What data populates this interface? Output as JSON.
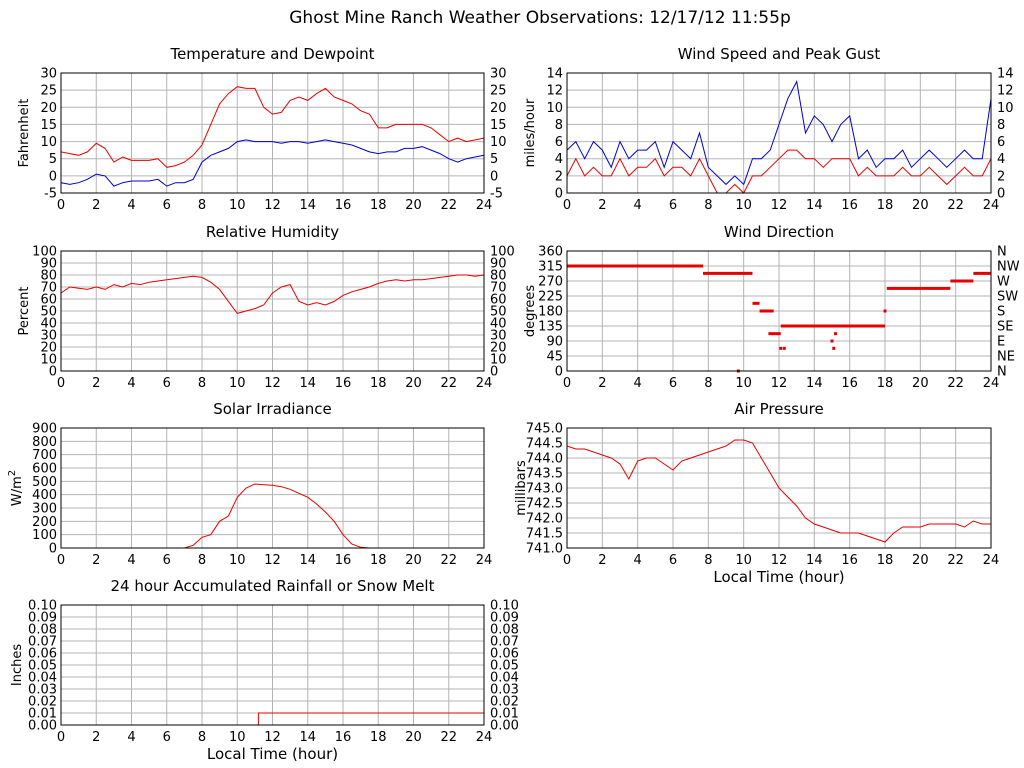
{
  "page": {
    "title": "Ghost Mine Ranch Weather Observations: 12/17/12 11:55p"
  },
  "colors": {
    "red": "#e60000",
    "blue": "#0000cc",
    "grid": "#b4b4b4"
  },
  "chart_data": [
    {
      "id": "temperature",
      "type": "line",
      "title": "Temperature and Dewpoint",
      "ylabel": "Fahrenheit",
      "xlabel": "",
      "xlim": [
        0,
        24
      ],
      "ylim": [
        -5,
        30
      ],
      "xticks": [
        "0",
        "2",
        "4",
        "6",
        "8",
        "10",
        "12",
        "14",
        "16",
        "18",
        "20",
        "22",
        "24"
      ],
      "yticks": [
        "-5",
        "0",
        "5",
        "10",
        "15",
        "20",
        "25",
        "30"
      ],
      "right_ticks": true,
      "series": [
        {
          "color": "#e60000",
          "x": [
            0,
            0.5,
            1,
            1.5,
            2,
            2.5,
            3,
            3.5,
            4,
            4.5,
            5,
            5.5,
            6,
            6.5,
            7,
            7.5,
            8,
            8.5,
            9,
            9.5,
            10,
            10.5,
            11,
            11.5,
            12,
            12.5,
            13,
            13.5,
            14,
            14.5,
            15,
            15.5,
            16,
            16.5,
            17,
            17.5,
            18,
            18.5,
            19,
            19.5,
            20,
            20.5,
            21,
            21.5,
            22,
            22.5,
            23,
            23.5,
            24
          ],
          "y": [
            7,
            6.5,
            6,
            7,
            9.5,
            8,
            4,
            5.5,
            4.5,
            4.5,
            4.5,
            5,
            2.5,
            3,
            4,
            6,
            9,
            15,
            21,
            24,
            26,
            25.5,
            25.5,
            20,
            18,
            18.5,
            22,
            23,
            22,
            24,
            25.5,
            23,
            22,
            21,
            19,
            18,
            14,
            14,
            15,
            15,
            15,
            15,
            14,
            12,
            10,
            11,
            10,
            10.5,
            11
          ]
        },
        {
          "color": "#0000cc",
          "x": [
            0,
            0.5,
            1,
            1.5,
            2,
            2.5,
            3,
            3.5,
            4,
            4.5,
            5,
            5.5,
            6,
            6.5,
            7,
            7.5,
            8,
            8.5,
            9,
            9.5,
            10,
            10.5,
            11,
            11.5,
            12,
            12.5,
            13,
            13.5,
            14,
            14.5,
            15,
            15.5,
            16,
            16.5,
            17,
            17.5,
            18,
            18.5,
            19,
            19.5,
            20,
            20.5,
            21,
            21.5,
            22,
            22.5,
            23,
            23.5,
            24
          ],
          "y": [
            -2,
            -2.5,
            -2,
            -1,
            0.5,
            0,
            -3,
            -2,
            -1.5,
            -1.5,
            -1.5,
            -1,
            -3,
            -2,
            -2,
            -1,
            4,
            6,
            7,
            8,
            10,
            10.5,
            10,
            10,
            10,
            9.5,
            10,
            10,
            9.5,
            10,
            10.5,
            10,
            9.5,
            9,
            8,
            7,
            6.5,
            7,
            7,
            8,
            8,
            8.5,
            7.5,
            6.5,
            5,
            4,
            5,
            5.5,
            6
          ]
        }
      ]
    },
    {
      "id": "wind",
      "type": "line",
      "title": "Wind Speed and Peak Gust",
      "ylabel": "miles/hour",
      "xlabel": "",
      "xlim": [
        0,
        24
      ],
      "ylim": [
        0,
        14
      ],
      "xticks": [
        "0",
        "2",
        "4",
        "6",
        "8",
        "10",
        "12",
        "14",
        "16",
        "18",
        "20",
        "22",
        "24"
      ],
      "yticks": [
        "0",
        "2",
        "4",
        "6",
        "8",
        "10",
        "12",
        "14"
      ],
      "right_ticks": true,
      "series": [
        {
          "color": "#0000cc",
          "x": [
            0,
            0.5,
            1,
            1.5,
            2,
            2.5,
            3,
            3.5,
            4,
            4.5,
            5,
            5.5,
            6,
            6.5,
            7,
            7.5,
            8,
            8.5,
            9,
            9.5,
            10,
            10.5,
            11,
            11.5,
            12,
            12.5,
            13,
            13.5,
            14,
            14.5,
            15,
            15.5,
            16,
            16.5,
            17,
            17.5,
            18,
            18.5,
            19,
            19.5,
            20,
            20.5,
            21,
            21.5,
            22,
            22.5,
            23,
            23.5,
            24
          ],
          "y": [
            5,
            6,
            4,
            6,
            5,
            3,
            6,
            4,
            5,
            5,
            6,
            3,
            6,
            5,
            4,
            7,
            3,
            2,
            1,
            2,
            1,
            4,
            4,
            5,
            8,
            11,
            13,
            7,
            9,
            8,
            6,
            8,
            9,
            4,
            5,
            3,
            4,
            4,
            5,
            3,
            4,
            5,
            4,
            3,
            4,
            5,
            4,
            4,
            11
          ]
        },
        {
          "color": "#e60000",
          "x": [
            0,
            0.5,
            1,
            1.5,
            2,
            2.5,
            3,
            3.5,
            4,
            4.5,
            5,
            5.5,
            6,
            6.5,
            7,
            7.5,
            8,
            8.5,
            9,
            9.5,
            10,
            10.5,
            11,
            11.5,
            12,
            12.5,
            13,
            13.5,
            14,
            14.5,
            15,
            15.5,
            16,
            16.5,
            17,
            17.5,
            18,
            18.5,
            19,
            19.5,
            20,
            20.5,
            21,
            21.5,
            22,
            22.5,
            23,
            23.5,
            24
          ],
          "y": [
            2,
            4,
            2,
            3,
            2,
            2,
            4,
            2,
            3,
            3,
            4,
            2,
            3,
            3,
            2,
            4,
            2,
            0,
            0,
            1,
            0,
            2,
            2,
            3,
            4,
            5,
            5,
            4,
            4,
            3,
            4,
            4,
            4,
            2,
            3,
            2,
            2,
            2,
            3,
            2,
            2,
            3,
            2,
            1,
            2,
            3,
            2,
            2,
            4
          ]
        }
      ]
    },
    {
      "id": "humidity",
      "type": "line",
      "title": "Relative Humidity",
      "ylabel": "Percent",
      "xlabel": "",
      "xlim": [
        0,
        24
      ],
      "ylim": [
        0,
        100
      ],
      "xticks": [
        "0",
        "2",
        "4",
        "6",
        "8",
        "10",
        "12",
        "14",
        "16",
        "18",
        "20",
        "22",
        "24"
      ],
      "yticks": [
        "0",
        "10",
        "20",
        "30",
        "40",
        "50",
        "60",
        "70",
        "80",
        "90",
        "100"
      ],
      "right_ticks": true,
      "series": [
        {
          "color": "#e60000",
          "x": [
            0,
            0.5,
            1,
            1.5,
            2,
            2.5,
            3,
            3.5,
            4,
            4.5,
            5,
            5.5,
            6,
            6.5,
            7,
            7.5,
            8,
            8.5,
            9,
            9.5,
            10,
            10.5,
            11,
            11.5,
            12,
            12.5,
            13,
            13.5,
            14,
            14.5,
            15,
            15.5,
            16,
            16.5,
            17,
            17.5,
            18,
            18.5,
            19,
            19.5,
            20,
            20.5,
            21,
            21.5,
            22,
            22.5,
            23,
            23.5,
            24
          ],
          "y": [
            65,
            70,
            69,
            68,
            70,
            68,
            72,
            70,
            73,
            72,
            74,
            75,
            76,
            77,
            78,
            79,
            78,
            74,
            68,
            58,
            48,
            50,
            52,
            55,
            65,
            70,
            72,
            58,
            55,
            57,
            55,
            58,
            63,
            66,
            68,
            70,
            73,
            75,
            76,
            75,
            76,
            76,
            77,
            78,
            79,
            80,
            80,
            79,
            80
          ]
        }
      ]
    },
    {
      "id": "direction",
      "type": "scatter",
      "title": "Wind Direction",
      "ylabel": "degrees",
      "xlabel": "",
      "xlim": [
        0,
        24
      ],
      "ylim": [
        0,
        360
      ],
      "xticks": [
        "0",
        "2",
        "4",
        "6",
        "8",
        "10",
        "12",
        "14",
        "16",
        "18",
        "20",
        "22",
        "24"
      ],
      "yticks": [
        "0",
        "45",
        "90",
        "135",
        "180",
        "225",
        "270",
        "315",
        "360"
      ],
      "compass": [
        "N",
        "NE",
        "E",
        "SE",
        "S",
        "SW",
        "W",
        "NW",
        "N"
      ],
      "segments": [
        {
          "x1": 0,
          "x2": 7.7,
          "y": 315
        },
        {
          "x1": 7.7,
          "x2": 10.5,
          "y": 293
        },
        {
          "x1": 10.5,
          "x2": 10.9,
          "y": 203
        },
        {
          "x1": 10.9,
          "x2": 11.7,
          "y": 180
        },
        {
          "x1": 11.4,
          "x2": 12.1,
          "y": 112
        },
        {
          "x1": 12.1,
          "x2": 14.8,
          "y": 135
        },
        {
          "x1": 14.8,
          "x2": 18.0,
          "y": 135
        },
        {
          "x1": 18.1,
          "x2": 21.7,
          "y": 248
        },
        {
          "x1": 21.7,
          "x2": 23.0,
          "y": 270
        },
        {
          "x1": 23.0,
          "x2": 24.0,
          "y": 293
        }
      ],
      "points": [
        {
          "x": 9.7,
          "y": 0
        },
        {
          "x": 12.1,
          "y": 68
        },
        {
          "x": 12.3,
          "y": 68
        },
        {
          "x": 15.0,
          "y": 90
        },
        {
          "x": 15.1,
          "y": 68
        },
        {
          "x": 15.2,
          "y": 112
        },
        {
          "x": 18.0,
          "y": 180
        }
      ]
    },
    {
      "id": "solar",
      "type": "line",
      "title": "Solar Irradiance",
      "ylabel": "W/m",
      "ylabel_sup": "2",
      "xlabel": "",
      "xlim": [
        0,
        24
      ],
      "ylim": [
        0,
        900
      ],
      "xticks": [
        "0",
        "2",
        "4",
        "6",
        "8",
        "10",
        "12",
        "14",
        "16",
        "18",
        "20",
        "22",
        "24"
      ],
      "yticks": [
        "0",
        "100",
        "200",
        "300",
        "400",
        "500",
        "600",
        "700",
        "800",
        "900"
      ],
      "right_ticks": false,
      "series": [
        {
          "color": "#e60000",
          "x": [
            0,
            7,
            7.5,
            8,
            8.5,
            9,
            9.5,
            10,
            10.5,
            11,
            11.5,
            12,
            12.5,
            13,
            13.5,
            14,
            14.5,
            15,
            15.5,
            16,
            16.5,
            17,
            17.5,
            18,
            24
          ],
          "y": [
            0,
            0,
            20,
            80,
            100,
            200,
            240,
            380,
            450,
            480,
            475,
            470,
            460,
            440,
            410,
            380,
            330,
            270,
            200,
            100,
            30,
            5,
            0,
            0,
            0
          ]
        }
      ]
    },
    {
      "id": "pressure",
      "type": "line",
      "title": "Air Pressure",
      "ylabel": "millibars",
      "xlabel": "Local Time (hour)",
      "xlim": [
        0,
        24
      ],
      "ylim": [
        741.0,
        745.0
      ],
      "xticks": [
        "0",
        "2",
        "4",
        "6",
        "8",
        "10",
        "12",
        "14",
        "16",
        "18",
        "20",
        "22",
        "24"
      ],
      "yticks": [
        "741.0",
        "741.5",
        "742.0",
        "742.5",
        "743.0",
        "743.5",
        "744.0",
        "744.5",
        "745.0"
      ],
      "right_ticks": false,
      "series": [
        {
          "color": "#e60000",
          "x": [
            0,
            0.5,
            1,
            1.5,
            2,
            2.5,
            3,
            3.5,
            4,
            4.5,
            5,
            5.5,
            6,
            6.5,
            7,
            7.5,
            8,
            8.5,
            9,
            9.5,
            10,
            10.5,
            11,
            11.5,
            12,
            12.5,
            13,
            13.5,
            14,
            14.5,
            15,
            15.5,
            16,
            16.5,
            17,
            17.5,
            18,
            18.5,
            19,
            19.5,
            20,
            20.5,
            21,
            21.5,
            22,
            22.5,
            23,
            23.5,
            24
          ],
          "y": [
            744.4,
            744.3,
            744.3,
            744.2,
            744.1,
            744.0,
            743.8,
            743.3,
            743.9,
            744.0,
            744.0,
            743.8,
            743.6,
            743.9,
            744.0,
            744.1,
            744.2,
            744.3,
            744.4,
            744.6,
            744.6,
            744.5,
            744.0,
            743.5,
            743.0,
            742.7,
            742.4,
            742.0,
            741.8,
            741.7,
            741.6,
            741.5,
            741.5,
            741.5,
            741.4,
            741.3,
            741.2,
            741.5,
            741.7,
            741.7,
            741.7,
            741.8,
            741.8,
            741.8,
            741.8,
            741.7,
            741.9,
            741.8,
            741.8
          ]
        }
      ]
    },
    {
      "id": "rain",
      "type": "line",
      "title": "24 hour Accumulated Rainfall or Snow Melt",
      "ylabel": "Inches",
      "xlabel": "Local Time (hour)",
      "xlim": [
        0,
        24
      ],
      "ylim": [
        0,
        0.1
      ],
      "xticks": [
        "0",
        "2",
        "4",
        "6",
        "8",
        "10",
        "12",
        "14",
        "16",
        "18",
        "20",
        "22",
        "24"
      ],
      "yticks": [
        "0.00",
        "0.01",
        "0.02",
        "0.03",
        "0.04",
        "0.05",
        "0.06",
        "0.07",
        "0.08",
        "0.09",
        "0.10"
      ],
      "right_ticks": true,
      "series": [
        {
          "color": "#e60000",
          "x": [
            0,
            11.2,
            11.2,
            24
          ],
          "y": [
            0,
            0,
            0.01,
            0.01
          ]
        }
      ]
    }
  ]
}
